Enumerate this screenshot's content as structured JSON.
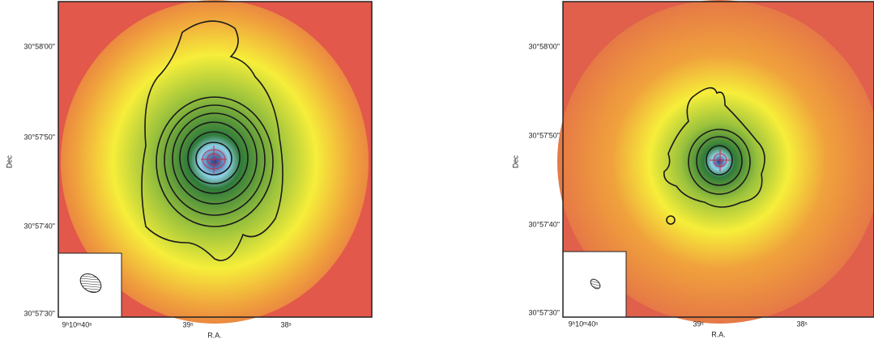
{
  "figure": {
    "panels": [
      {
        "ylabel": "Dec",
        "xlabel": "R.A.",
        "yticks": [
          "30°58'00\"",
          "30°57'50\"",
          "30°57'40\"",
          "30°57'30\""
        ],
        "xticks": [
          "9ʰ10ᵐ40ˢ",
          "39ˢ",
          "38ˢ"
        ]
      },
      {
        "ylabel": "Dec",
        "xlabel": "R.A.",
        "yticks": [
          "30°58'00\"",
          "30°57'50\"",
          "30°57'40\"",
          "30°57'30\""
        ],
        "xticks": [
          "9ʰ10ᵐ40ˢ",
          "39ˢ",
          "38ˢ"
        ]
      }
    ]
  }
}
